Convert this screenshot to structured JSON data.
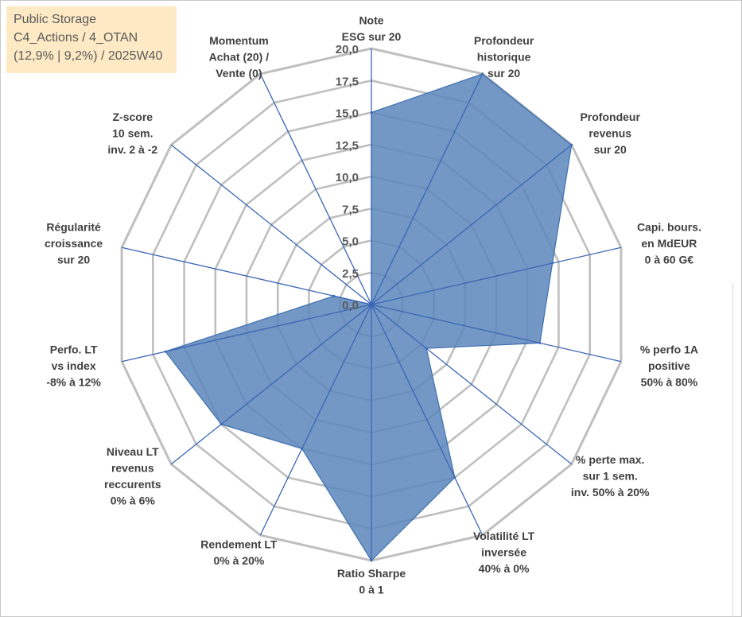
{
  "info": {
    "name": "Public Storage",
    "category": "C4_Actions / 4_OTAN",
    "stats": "(12,9% | 9,2%) / 2025W40"
  },
  "colors": {
    "fill": "#5b86bb",
    "stroke": "#3f6fb0",
    "grid": "#bfbfbf",
    "spoke": "#3a66b5",
    "info_bg": "#fde9c4"
  },
  "chart_data": {
    "type": "radar",
    "rmax": 20,
    "tick_step": 2.5,
    "ticks": [
      "0,0",
      "2,5",
      "5,0",
      "7,5",
      "10,0",
      "12,5",
      "15,0",
      "17,5",
      "20,0"
    ],
    "axes": [
      {
        "label": [
          "Note",
          "ESG sur 20"
        ],
        "value": 15
      },
      {
        "label": [
          "Profondeur",
          "historique",
          "sur 20"
        ],
        "value": 20
      },
      {
        "label": [
          "Profondeur",
          "revenus",
          "sur 20"
        ],
        "value": 20
      },
      {
        "label": [
          "Capi. bours.",
          "en MdEUR",
          "0 à 60 G€"
        ],
        "value": 14.5
      },
      {
        "label": [
          "% perfo 1A",
          "positive",
          "50% à 80%"
        ],
        "value": 13.5
      },
      {
        "label": [
          "% perte max.",
          "sur 1 sem.",
          "inv. 50% à 20%"
        ],
        "value": 5.5
      },
      {
        "label": [
          "Volatilité LT",
          "inversée",
          "40% à 0%"
        ],
        "value": 15
      },
      {
        "label": [
          "Ratio Sharpe",
          "0 à 1"
        ],
        "value": 20
      },
      {
        "label": [
          "Rendement LT",
          "0% à 20%"
        ],
        "value": 12.5
      },
      {
        "label": [
          "Niveau LT",
          "revenus",
          "reccurents",
          "0% à 6%"
        ],
        "value": 15
      },
      {
        "label": [
          "Perfo. LT",
          "vs index",
          "-8% à 12%"
        ],
        "value": 16.5
      },
      {
        "label": [
          "Régularité",
          "croissance",
          "sur 20"
        ],
        "value": 3
      },
      {
        "label": [
          "Z-score",
          "10 sem.",
          "inv. 2 à -2"
        ],
        "value": 0
      },
      {
        "label": [
          "Momentum",
          "Achat (20) /",
          "Vente (0)"
        ],
        "value": 0
      }
    ]
  }
}
